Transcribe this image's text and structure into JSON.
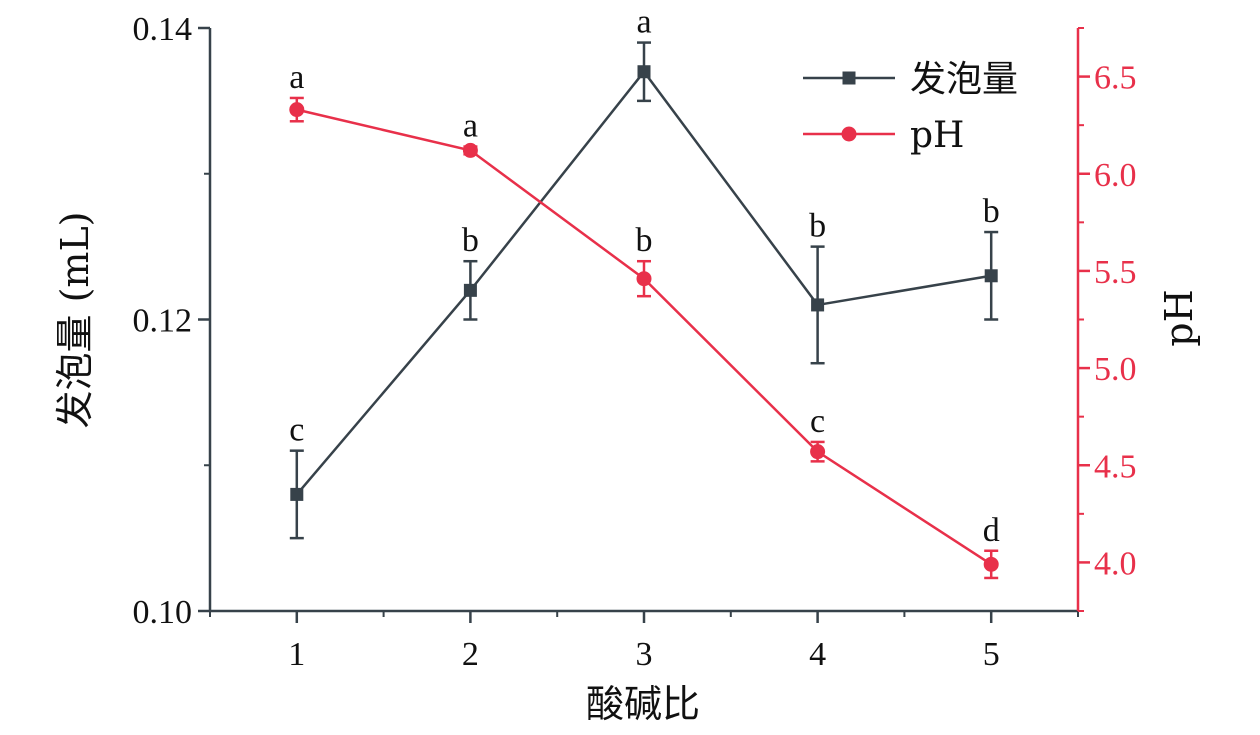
{
  "chart_data": {
    "type": "line",
    "x": [
      1,
      2,
      3,
      4,
      5
    ],
    "xlabel": "酸碱比",
    "xlim": [
      0.5,
      5.5
    ],
    "x_ticks": [
      "1",
      "2",
      "3",
      "4",
      "5"
    ],
    "y_left": {
      "label": "发泡量 (mL)",
      "lim": [
        0.1,
        0.14
      ],
      "ticks": [
        "0.10",
        "0.12",
        "0.14"
      ],
      "color": "#37424a"
    },
    "y_right": {
      "label": "pH",
      "lim": [
        3.75,
        6.75
      ],
      "ticks": [
        "4.0",
        "4.5",
        "5.0",
        "5.5",
        "6.0",
        "6.5"
      ],
      "color": "#e8304a"
    },
    "series": [
      {
        "name": "发泡量",
        "axis": "left",
        "color": "#37424a",
        "marker": "square",
        "values": [
          0.108,
          0.122,
          0.137,
          0.121,
          0.123
        ],
        "errors": [
          0.003,
          0.002,
          0.002,
          0.004,
          0.003
        ],
        "labels": [
          "c",
          "b",
          "a",
          "b",
          "b"
        ]
      },
      {
        "name": "pH",
        "axis": "right",
        "color": "#e8304a",
        "marker": "circle",
        "values": [
          6.33,
          6.12,
          5.46,
          4.57,
          3.99
        ],
        "errors": [
          0.06,
          0.02,
          0.09,
          0.05,
          0.07
        ],
        "labels": [
          "a",
          "a",
          "b",
          "c",
          "d"
        ]
      }
    ],
    "legend": {
      "placement": "top-right",
      "entries": [
        "发泡量",
        "pH"
      ]
    },
    "grid": false
  }
}
